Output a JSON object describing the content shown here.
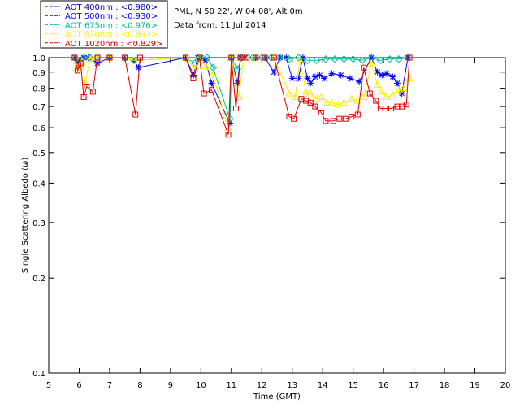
{
  "chart_data": {
    "type": "scatter",
    "xlabel": "Time (GMT)",
    "ylabel": "Single Scattering Albedo (ω)",
    "xlim": [
      5,
      20
    ],
    "ylim": [
      0.1,
      1.0
    ],
    "yscale": "log",
    "x_ticks": [
      "5",
      "6",
      "7",
      "8",
      "9",
      "10",
      "11",
      "12",
      "13",
      "14",
      "15",
      "16",
      "17",
      "18",
      "19",
      "20"
    ],
    "y_ticks": [
      {
        "value": 1.0,
        "label": "1.0"
      },
      {
        "value": 0.9,
        "label": "0.9"
      },
      {
        "value": 0.8,
        "label": "0.8"
      },
      {
        "value": 0.7,
        "label": "0.7"
      },
      {
        "value": 0.6,
        "label": "0.6"
      },
      {
        "value": 0.5,
        "label": "0.5"
      },
      {
        "value": 0.4,
        "label": "0.4"
      },
      {
        "value": 0.3,
        "label": "0.3"
      },
      {
        "value": 0.2,
        "label": "0.2"
      },
      {
        "value": 0.1,
        "label": "0.1"
      }
    ],
    "grid": false,
    "legend_position": "top-left-outside",
    "info_lines": [
      "PML, N 50 22', W 04 08', Alt 0m",
      "Data from: 11 Jul 2014"
    ],
    "series": [
      {
        "name": "AOT  400nm : <0.980>",
        "color": "#0000aa",
        "marker": "none",
        "x": [
          5.83,
          5.95,
          6.1,
          6.3,
          6.55,
          7.0,
          7.4,
          7.8,
          8.0,
          9.5,
          9.9,
          10.1,
          10.4,
          10.9,
          11.05,
          11.25,
          11.5,
          11.9,
          12.4,
          12.8,
          13.2,
          13.6,
          14.0,
          14.4,
          14.8,
          15.2,
          15.6,
          15.9,
          16.2,
          16.6,
          16.9
        ],
        "y": [
          1.0,
          1.0,
          1.0,
          1.0,
          1.0,
          1.0,
          1.0,
          1.0,
          1.0,
          1.0,
          1.0,
          1.0,
          1.0,
          1.0,
          1.0,
          1.0,
          1.0,
          1.0,
          1.0,
          1.0,
          1.0,
          1.0,
          1.0,
          1.0,
          1.0,
          1.0,
          1.0,
          1.0,
          1.0,
          1.0,
          1.0
        ]
      },
      {
        "name": "AOT  500nm : <0.930>",
        "color": "#0000ff",
        "marker": "star",
        "x": [
          5.85,
          5.95,
          6.05,
          6.15,
          6.3,
          6.6,
          7.0,
          7.5,
          7.8,
          7.95,
          9.5,
          9.75,
          9.9,
          10.0,
          10.15,
          10.35,
          10.95,
          11.0,
          11.2,
          11.3,
          11.45,
          11.8,
          12.1,
          12.4,
          12.6,
          12.8,
          13.0,
          13.2,
          13.35,
          13.5,
          13.6,
          13.75,
          13.9,
          14.05,
          14.3,
          14.6,
          14.9,
          15.2,
          15.6,
          15.8,
          15.95,
          16.1,
          16.3,
          16.45,
          16.6,
          16.8
        ],
        "y": [
          1.0,
          0.96,
          0.98,
          1.0,
          1.0,
          0.96,
          1.0,
          1.0,
          0.98,
          0.93,
          1.0,
          0.88,
          1.0,
          1.0,
          0.98,
          0.83,
          0.62,
          1.0,
          0.83,
          1.0,
          1.0,
          1.0,
          1.0,
          0.9,
          1.0,
          1.0,
          0.86,
          0.86,
          1.0,
          0.86,
          0.83,
          0.87,
          0.88,
          0.86,
          0.89,
          0.88,
          0.86,
          0.84,
          1.0,
          0.9,
          0.88,
          0.89,
          0.87,
          0.83,
          0.77,
          1.0
        ]
      },
      {
        "name": "AOT  675nm : <0.976>",
        "color": "#00bb99",
        "marker": "diamond",
        "x": [
          5.85,
          6.0,
          6.15,
          6.35,
          6.6,
          7.0,
          7.5,
          7.8,
          9.5,
          9.8,
          10.0,
          10.2,
          10.4,
          10.95,
          11.0,
          11.2,
          11.35,
          11.7,
          12.0,
          12.3,
          12.6,
          12.9,
          13.2,
          13.5,
          13.8,
          14.1,
          14.4,
          14.7,
          15.0,
          15.3,
          15.6,
          15.9,
          16.2,
          16.5,
          16.8
        ],
        "y": [
          1.0,
          0.97,
          1.0,
          1.0,
          1.0,
          1.0,
          1.0,
          0.98,
          1.0,
          0.96,
          1.0,
          1.0,
          0.93,
          0.64,
          1.0,
          0.92,
          1.0,
          1.0,
          1.0,
          1.0,
          1.0,
          0.99,
          1.0,
          0.98,
          0.98,
          0.99,
          0.99,
          0.99,
          0.99,
          0.98,
          1.0,
          0.98,
          0.99,
          0.99,
          1.0
        ]
      },
      {
        "name": "AOT  870nm : <0.893>",
        "color": "#ffee00",
        "marker": "triangle",
        "x": [
          5.85,
          5.95,
          6.1,
          6.2,
          6.35,
          6.6,
          7.0,
          7.5,
          7.8,
          9.5,
          9.8,
          9.95,
          10.15,
          10.4,
          10.9,
          11.0,
          11.25,
          11.4,
          11.8,
          12.1,
          12.4,
          12.9,
          13.1,
          13.25,
          13.45,
          13.6,
          13.8,
          13.95,
          14.15,
          14.3,
          14.5,
          14.7,
          14.95,
          15.15,
          15.35,
          15.6,
          15.8,
          15.95,
          16.1,
          16.3,
          16.5,
          16.65,
          16.85
        ],
        "y": [
          1.0,
          0.93,
          0.97,
          0.83,
          0.99,
          1.0,
          1.0,
          1.0,
          0.98,
          1.0,
          0.92,
          1.0,
          0.94,
          0.88,
          0.6,
          1.0,
          0.75,
          1.0,
          1.0,
          1.0,
          1.0,
          0.77,
          0.75,
          0.98,
          0.78,
          0.77,
          0.74,
          0.75,
          0.72,
          0.72,
          0.71,
          0.72,
          0.74,
          0.73,
          0.75,
          0.96,
          0.82,
          0.78,
          0.75,
          0.76,
          0.79,
          0.8,
          0.86
        ]
      },
      {
        "name": "AOT 1020nm : <0.829>",
        "color": "#dd0000",
        "marker": "square",
        "x": [
          5.85,
          5.95,
          6.05,
          6.15,
          6.25,
          6.45,
          6.6,
          7.0,
          7.5,
          7.85,
          8.0,
          9.5,
          9.75,
          9.95,
          10.1,
          10.35,
          10.9,
          11.0,
          11.15,
          11.3,
          11.5,
          11.8,
          12.1,
          12.4,
          12.9,
          13.05,
          13.3,
          13.45,
          13.6,
          13.75,
          13.95,
          14.1,
          14.35,
          14.55,
          14.75,
          14.95,
          15.15,
          15.35,
          15.55,
          15.75,
          15.9,
          16.05,
          16.25,
          16.45,
          16.6,
          16.75,
          16.85
        ],
        "y": [
          1.0,
          0.91,
          0.96,
          0.75,
          0.81,
          0.78,
          1.0,
          1.0,
          1.0,
          0.66,
          1.0,
          1.0,
          0.86,
          1.0,
          0.77,
          0.79,
          0.57,
          1.0,
          0.69,
          1.0,
          1.0,
          1.0,
          1.0,
          1.0,
          0.65,
          0.64,
          0.74,
          0.73,
          0.72,
          0.7,
          0.67,
          0.63,
          0.63,
          0.64,
          0.64,
          0.65,
          0.66,
          0.93,
          0.77,
          0.73,
          0.69,
          0.69,
          0.69,
          0.7,
          0.7,
          0.71,
          1.0
        ]
      }
    ]
  }
}
